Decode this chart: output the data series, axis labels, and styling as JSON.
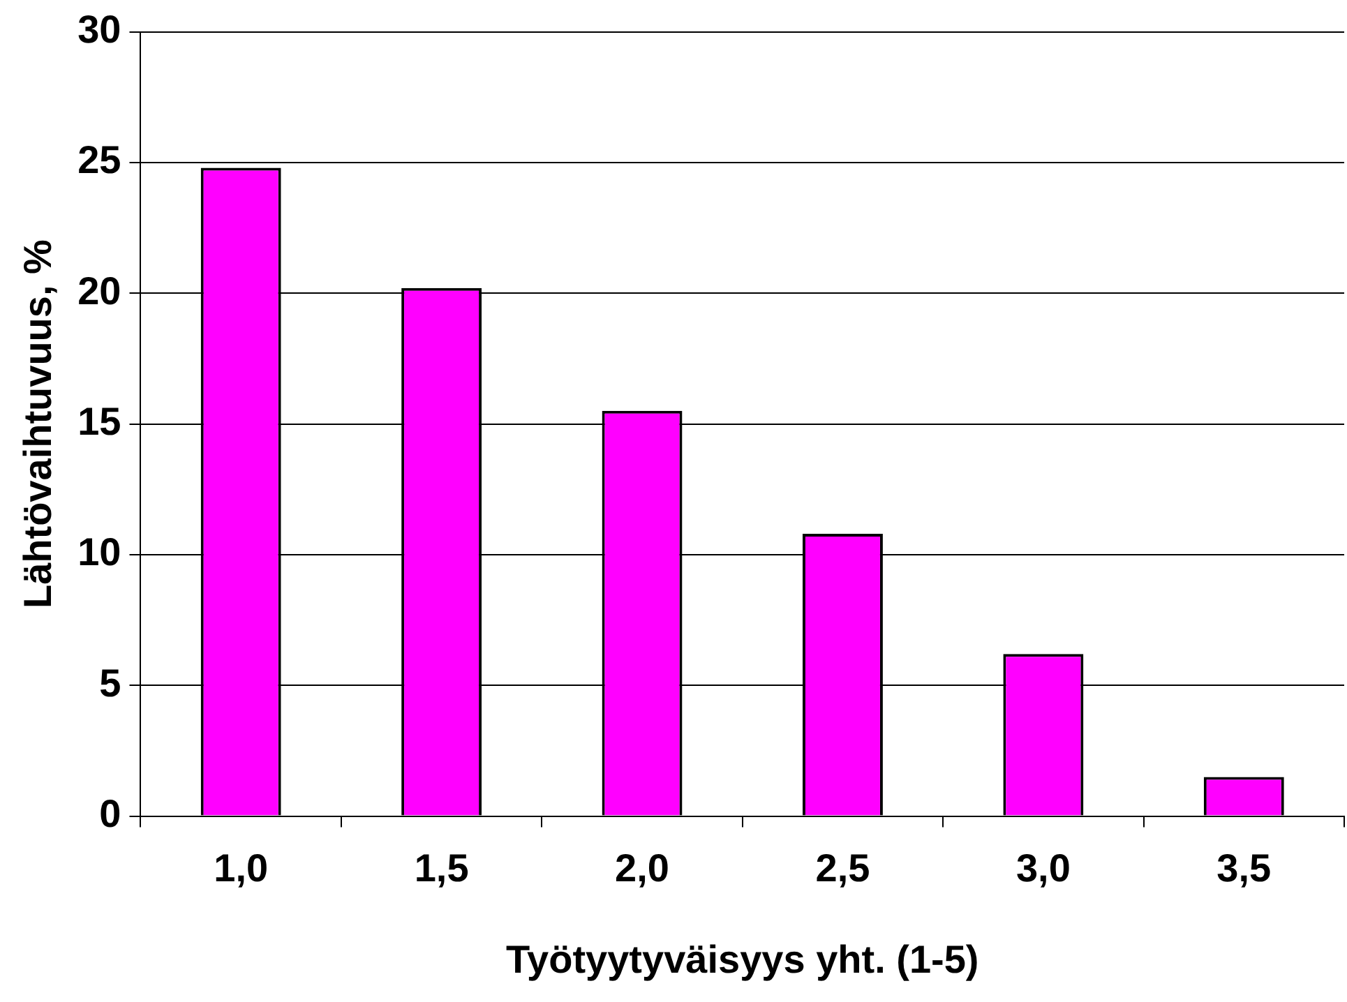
{
  "chart_data": {
    "type": "bar",
    "xlabel": "Työtyytyväisyys yht. (1-5)",
    "ylabel": "Lähtövaihtuvuus, %",
    "categories": [
      "1,0",
      "1,5",
      "2,0",
      "2,5",
      "3,0",
      "3,5"
    ],
    "values": [
      24.8,
      20.2,
      15.5,
      10.8,
      6.2,
      1.5
    ],
    "color": "#ff00ff",
    "ylim": [
      0,
      30
    ],
    "yticks": [
      0,
      5,
      10,
      15,
      20,
      25,
      30
    ],
    "grid": "y"
  }
}
